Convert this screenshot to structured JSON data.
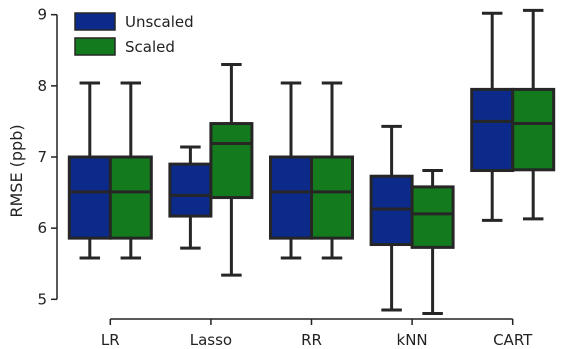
{
  "chart_data": {
    "type": "boxplot",
    "title": "",
    "xlabel": "",
    "ylabel": "RMSE (ppb)",
    "ylim": [
      4.85,
      9.15
    ],
    "yticks": [
      5,
      6,
      7,
      8,
      9
    ],
    "categories": [
      "LR",
      "Lasso",
      "RR",
      "kNN",
      "CART"
    ],
    "legend": {
      "placement": "top-left"
    },
    "series": [
      {
        "name": "Unscaled",
        "color": "#0b2a8a",
        "boxes": [
          {
            "whislo": 5.58,
            "q1": 5.86,
            "med": 6.51,
            "q3": 7.0,
            "whishi": 8.04
          },
          {
            "whislo": 5.72,
            "q1": 6.17,
            "med": 6.46,
            "q3": 6.9,
            "whishi": 7.14
          },
          {
            "whislo": 5.58,
            "q1": 5.86,
            "med": 6.51,
            "q3": 7.0,
            "whishi": 8.04
          },
          {
            "whislo": 4.85,
            "q1": 5.77,
            "med": 6.27,
            "q3": 6.73,
            "whishi": 7.43
          },
          {
            "whislo": 6.11,
            "q1": 6.81,
            "med": 7.5,
            "q3": 7.95,
            "whishi": 9.02
          }
        ]
      },
      {
        "name": "Scaled",
        "color": "#137a1e",
        "boxes": [
          {
            "whislo": 5.58,
            "q1": 5.86,
            "med": 6.51,
            "q3": 7.0,
            "whishi": 8.04
          },
          {
            "whislo": 5.34,
            "q1": 6.43,
            "med": 7.19,
            "q3": 7.47,
            "whishi": 8.3
          },
          {
            "whislo": 5.58,
            "q1": 5.86,
            "med": 6.51,
            "q3": 7.0,
            "whishi": 8.04
          },
          {
            "whislo": 4.8,
            "q1": 5.73,
            "med": 6.2,
            "q3": 6.58,
            "whishi": 6.81
          },
          {
            "whislo": 6.13,
            "q1": 6.82,
            "med": 7.47,
            "q3": 7.95,
            "whishi": 9.06
          }
        ]
      }
    ]
  }
}
